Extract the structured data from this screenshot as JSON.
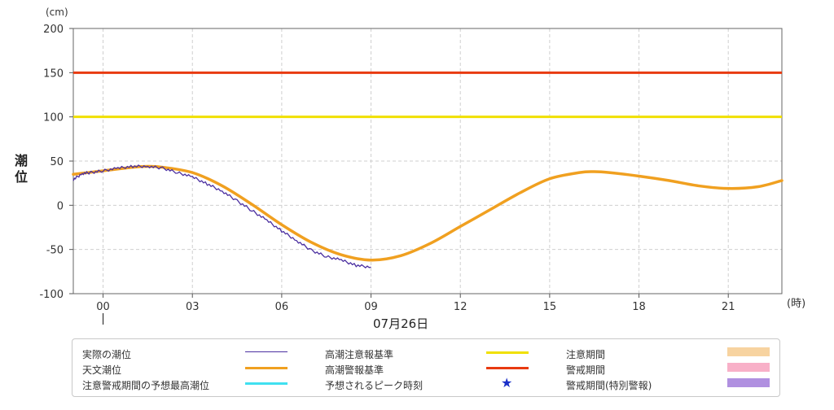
{
  "chart_data": {
    "type": "line",
    "y_unit": "(cm)",
    "y_label": "潮位",
    "x_unit": "(時)",
    "date_label": "07月26日",
    "ylim": [
      -100,
      200
    ],
    "y_ticks": [
      -100,
      -50,
      0,
      50,
      100,
      150,
      200
    ],
    "xlim": [
      -1,
      22.8
    ],
    "x_ticks": [
      {
        "x": 0,
        "label": "00"
      },
      {
        "x": 3,
        "label": "03"
      },
      {
        "x": 6,
        "label": "06"
      },
      {
        "x": 9,
        "label": "09"
      },
      {
        "x": 12,
        "label": "12"
      },
      {
        "x": 15,
        "label": "15"
      },
      {
        "x": 18,
        "label": "18"
      },
      {
        "x": 21,
        "label": "21"
      }
    ],
    "grid": true,
    "series": [
      {
        "name": "天文潮位",
        "color": "#f0a020",
        "x": [
          -1,
          0,
          1,
          1.5,
          2,
          3,
          4,
          5,
          6,
          7,
          8,
          9,
          10,
          11,
          12,
          13,
          14,
          15,
          16,
          16.5,
          17,
          18,
          19,
          20,
          21,
          22,
          22.8
        ],
        "y": [
          35,
          39,
          43,
          44,
          43,
          37,
          22,
          1,
          -22,
          -42,
          -56,
          -62,
          -57,
          -43,
          -24,
          -5,
          14,
          30,
          37,
          38,
          37,
          33,
          28,
          22,
          19,
          21,
          28
        ]
      },
      {
        "name": "実際の潮位",
        "color": "#4b2fa0",
        "x": [
          -1,
          -0.7,
          -0.4,
          0,
          0.5,
          1,
          1.5,
          2,
          2.5,
          3,
          3.5,
          4,
          4.5,
          5,
          5.5,
          6,
          6.5,
          7,
          7.5,
          8,
          8.5,
          9
        ],
        "y": [
          29,
          36,
          37,
          39,
          42,
          44,
          44,
          42,
          37,
          32,
          24,
          16,
          5,
          -6,
          -17,
          -29,
          -40,
          -51,
          -58,
          -62,
          -68,
          -70
        ]
      },
      {
        "name": "高潮警報基準",
        "color": "#e83a10",
        "x": [
          -1,
          22.8
        ],
        "y": [
          150,
          150
        ]
      },
      {
        "name": "高潮注意報基準",
        "color": "#f0e000",
        "x": [
          -1,
          22.8
        ],
        "y": [
          100,
          100
        ]
      }
    ]
  },
  "legend": {
    "col1": [
      {
        "label": "実際の潮位",
        "color": "#4b2fa0",
        "kind": "thin-line"
      },
      {
        "label": "天文潮位",
        "color": "#f0a020",
        "kind": "line"
      },
      {
        "label": "注意警戒期間の予想最高潮位",
        "color": "#40e0f0",
        "kind": "line"
      }
    ],
    "col2": [
      {
        "label": "高潮注意報基準",
        "color": "#f0e000",
        "kind": "line"
      },
      {
        "label": "高潮警報基準",
        "color": "#e83a10",
        "kind": "line"
      },
      {
        "label": "予想されるピーク時刻",
        "color": "#1a2fc8",
        "kind": "star",
        "glyph": "★"
      }
    ],
    "col3": [
      {
        "label": "注意期間",
        "color": "#f7d3a0",
        "kind": "box"
      },
      {
        "label": "警戒期間",
        "color": "#f8b0c8",
        "kind": "box"
      },
      {
        "label": "警戒期間(特別警報)",
        "color": "#b090e0",
        "kind": "box"
      }
    ]
  }
}
